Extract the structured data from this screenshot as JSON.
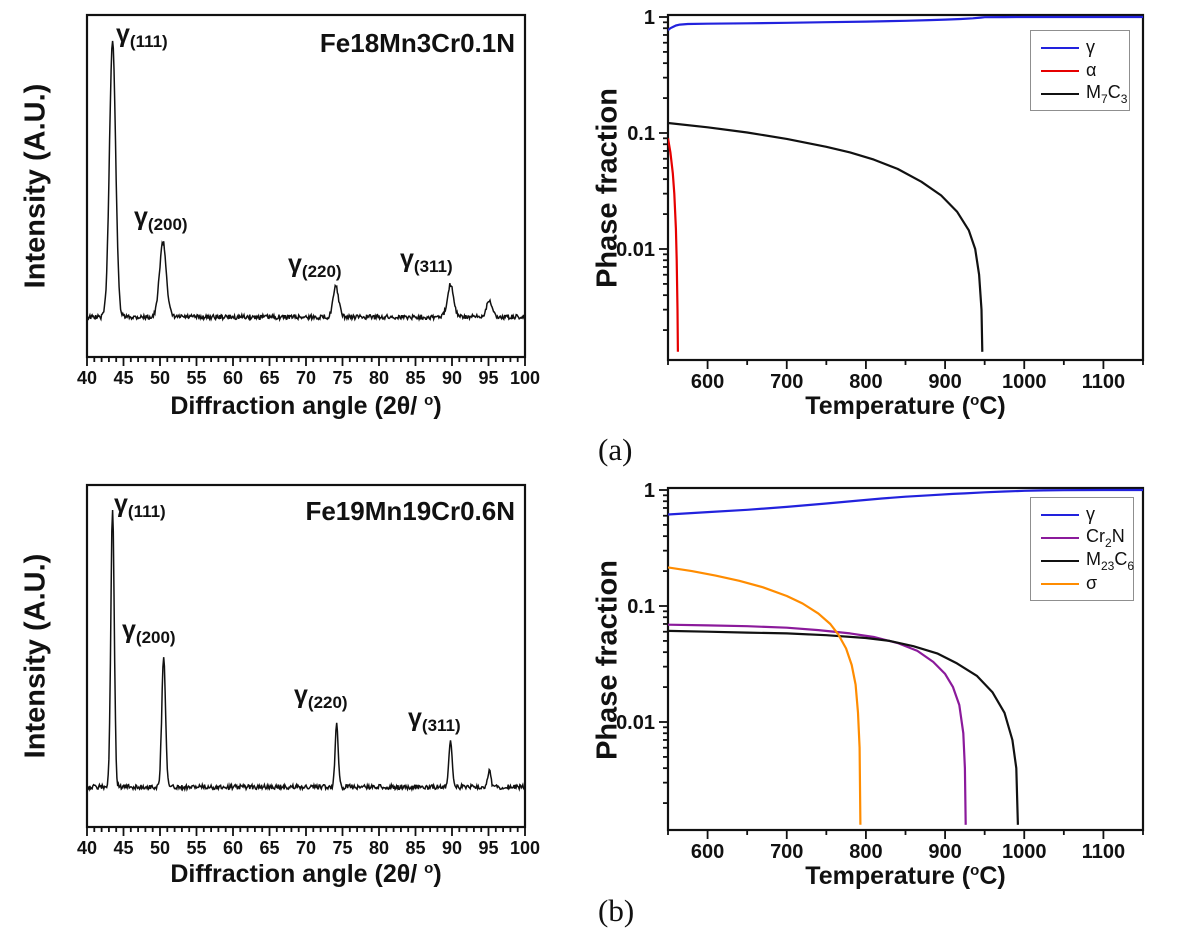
{
  "captions": {
    "a": "(a)",
    "b": "(b)"
  },
  "axis_labels": {
    "intensity": "Intensity (A.U.)",
    "phase": "Phase fraction",
    "diffraction": {
      "pre": "Diffraction angle (2θ/ ",
      "sup": "o",
      "post": ")"
    },
    "temperature": {
      "pre": "Temperature (",
      "sup": "o",
      "post": "C)"
    }
  },
  "chart_data": [
    {
      "id": "xrd_a",
      "type": "line",
      "title": "Fe18Mn3Cr0.1N",
      "xlabel": "Diffraction angle (2θ/ °)",
      "ylabel": "Intensity (A.U.)",
      "xlim": [
        40,
        100
      ],
      "x_major_ticks": [
        40,
        45,
        50,
        55,
        60,
        65,
        70,
        75,
        80,
        85,
        90,
        95,
        100
      ],
      "x_minor_step": 1,
      "yscale": "arbitrary",
      "noise": 0.008,
      "peaks": [
        {
          "two_theta": 43.5,
          "rel_height": 0.92,
          "fwhm": 1.0,
          "label": {
            "main": "γ",
            "sub": "(111)"
          }
        },
        {
          "two_theta": 50.4,
          "rel_height": 0.25,
          "fwhm": 1.1,
          "label": {
            "main": "γ",
            "sub": "(200)"
          }
        },
        {
          "two_theta": 74.1,
          "rel_height": 0.1,
          "fwhm": 0.9,
          "label": {
            "main": "γ",
            "sub": "(220)"
          }
        },
        {
          "two_theta": 89.8,
          "rel_height": 0.11,
          "fwhm": 1.0,
          "label": {
            "main": "γ",
            "sub": "(311)"
          }
        },
        {
          "two_theta": 95.1,
          "rel_height": 0.057,
          "fwhm": 0.9,
          "label": null
        }
      ]
    },
    {
      "id": "phase_a",
      "type": "line",
      "xlabel": "Temperature (°C)",
      "ylabel": "Phase fraction",
      "xlim": [
        550,
        1150
      ],
      "x_major_ticks": [
        600,
        700,
        800,
        900,
        1000,
        1100
      ],
      "x_minor_step": 50,
      "yscale": "log",
      "ylim": [
        0.0012,
        1.05
      ],
      "y_ticks": [
        {
          "v": 1,
          "label": "1"
        },
        {
          "v": 0.1,
          "label": "0.1"
        },
        {
          "v": 0.01,
          "label": "0.01"
        }
      ],
      "legend_position": "top-right",
      "series": [
        {
          "name": "gamma",
          "color": "#2222dd",
          "label_parts": [
            {
              "t": "γ"
            }
          ],
          "points": [
            [
              550,
              0.77
            ],
            [
              553,
              0.8
            ],
            [
              556,
              0.82
            ],
            [
              560,
              0.845
            ],
            [
              565,
              0.86
            ],
            [
              575,
              0.87
            ],
            [
              600,
              0.875
            ],
            [
              650,
              0.883
            ],
            [
              700,
              0.892
            ],
            [
              750,
              0.902
            ],
            [
              800,
              0.913
            ],
            [
              850,
              0.928
            ],
            [
              880,
              0.94
            ],
            [
              900,
              0.95
            ],
            [
              920,
              0.962
            ],
            [
              935,
              0.975
            ],
            [
              945,
              0.988
            ],
            [
              950,
              0.996
            ],
            [
              975,
              0.999
            ],
            [
              1000,
              1.0
            ],
            [
              1075,
              1.0
            ],
            [
              1150,
              1.0
            ]
          ]
        },
        {
          "name": "alpha",
          "color": "#e60000",
          "label_parts": [
            {
              "t": "α"
            }
          ],
          "points": [
            [
              550,
              0.09
            ],
            [
              553,
              0.068
            ],
            [
              556,
              0.045
            ],
            [
              558,
              0.03
            ],
            [
              560,
              0.015
            ],
            [
              561,
              0.008
            ],
            [
              562,
              0.003
            ],
            [
              562.5,
              0.0013
            ]
          ]
        },
        {
          "name": "M7C3",
          "color": "#111111",
          "label_parts": [
            {
              "t": "M"
            },
            {
              "s": "7"
            },
            {
              "t": "C"
            },
            {
              "s": "3"
            }
          ],
          "points": [
            [
              550,
              0.122
            ],
            [
              600,
              0.112
            ],
            [
              650,
              0.101
            ],
            [
              700,
              0.089
            ],
            [
              750,
              0.076
            ],
            [
              780,
              0.068
            ],
            [
              810,
              0.059
            ],
            [
              840,
              0.049
            ],
            [
              870,
              0.038
            ],
            [
              895,
              0.029
            ],
            [
              915,
              0.021
            ],
            [
              930,
              0.0145
            ],
            [
              938,
              0.01
            ],
            [
              943,
              0.006
            ],
            [
              946,
              0.003
            ],
            [
              947,
              0.0013
            ]
          ]
        }
      ]
    },
    {
      "id": "xrd_b",
      "type": "line",
      "title": "Fe19Mn19Cr0.6N",
      "xlabel": "Diffraction angle (2θ/ °)",
      "ylabel": "Intensity (A.U.)",
      "xlim": [
        40,
        100
      ],
      "x_major_ticks": [
        40,
        45,
        50,
        55,
        60,
        65,
        70,
        75,
        80,
        85,
        90,
        95,
        100
      ],
      "x_minor_step": 1,
      "yscale": "arbitrary",
      "noise": 0.008,
      "peaks": [
        {
          "two_theta": 43.5,
          "rel_height": 0.93,
          "fwhm": 0.55,
          "label": {
            "main": "γ",
            "sub": "(111)"
          }
        },
        {
          "two_theta": 50.5,
          "rel_height": 0.44,
          "fwhm": 0.6,
          "label": {
            "main": "γ",
            "sub": "(200)"
          }
        },
        {
          "two_theta": 74.2,
          "rel_height": 0.215,
          "fwhm": 0.5,
          "label": {
            "main": "γ",
            "sub": "(220)"
          }
        },
        {
          "two_theta": 89.8,
          "rel_height": 0.15,
          "fwhm": 0.55,
          "label": {
            "main": "γ",
            "sub": "(311)"
          }
        },
        {
          "two_theta": 95.1,
          "rel_height": 0.054,
          "fwhm": 0.5,
          "label": null
        }
      ]
    },
    {
      "id": "phase_b",
      "type": "line",
      "xlabel": "Temperature (°C)",
      "ylabel": "Phase fraction",
      "xlim": [
        550,
        1150
      ],
      "x_major_ticks": [
        600,
        700,
        800,
        900,
        1000,
        1100
      ],
      "x_minor_step": 50,
      "yscale": "log",
      "ylim": [
        0.0012,
        1.05
      ],
      "y_ticks": [
        {
          "v": 1,
          "label": "1"
        },
        {
          "v": 0.1,
          "label": "0.1"
        },
        {
          "v": 0.01,
          "label": "0.01"
        }
      ],
      "legend_position": "top-right",
      "series": [
        {
          "name": "gamma",
          "color": "#2222dd",
          "label_parts": [
            {
              "t": "γ"
            }
          ],
          "points": [
            [
              550,
              0.615
            ],
            [
              600,
              0.645
            ],
            [
              650,
              0.675
            ],
            [
              700,
              0.715
            ],
            [
              750,
              0.765
            ],
            [
              790,
              0.81
            ],
            [
              820,
              0.845
            ],
            [
              850,
              0.875
            ],
            [
              880,
              0.9
            ],
            [
              910,
              0.925
            ],
            [
              925,
              0.935
            ],
            [
              950,
              0.955
            ],
            [
              975,
              0.97
            ],
            [
              1000,
              0.985
            ],
            [
              1025,
              0.992
            ],
            [
              1050,
              0.997
            ],
            [
              1100,
              1.0
            ],
            [
              1150,
              1.0
            ]
          ]
        },
        {
          "name": "Cr2N",
          "color": "#8b1a9b",
          "label_parts": [
            {
              "t": "Cr"
            },
            {
              "s": "2"
            },
            {
              "t": "N"
            }
          ],
          "points": [
            [
              550,
              0.069
            ],
            [
              600,
              0.068
            ],
            [
              650,
              0.067
            ],
            [
              700,
              0.065
            ],
            [
              740,
              0.062
            ],
            [
              780,
              0.058
            ],
            [
              810,
              0.054
            ],
            [
              840,
              0.048
            ],
            [
              865,
              0.041
            ],
            [
              885,
              0.033
            ],
            [
              900,
              0.026
            ],
            [
              910,
              0.02
            ],
            [
              918,
              0.014
            ],
            [
              923,
              0.008
            ],
            [
              925,
              0.004
            ],
            [
              926,
              0.0013
            ]
          ]
        },
        {
          "name": "M23C6",
          "color": "#111111",
          "label_parts": [
            {
              "t": "M"
            },
            {
              "s": "23"
            },
            {
              "t": "C"
            },
            {
              "s": "6"
            }
          ],
          "points": [
            [
              550,
              0.061
            ],
            [
              600,
              0.06
            ],
            [
              650,
              0.059
            ],
            [
              700,
              0.058
            ],
            [
              750,
              0.056
            ],
            [
              800,
              0.053
            ],
            [
              830,
              0.05
            ],
            [
              860,
              0.045
            ],
            [
              890,
              0.039
            ],
            [
              915,
              0.032
            ],
            [
              940,
              0.025
            ],
            [
              960,
              0.018
            ],
            [
              975,
              0.012
            ],
            [
              985,
              0.007
            ],
            [
              990,
              0.004
            ],
            [
              992,
              0.0013
            ]
          ]
        },
        {
          "name": "sigma",
          "color": "#ff8c00",
          "label_parts": [
            {
              "t": "σ"
            }
          ],
          "points": [
            [
              550,
              0.215
            ],
            [
              580,
              0.2
            ],
            [
              610,
              0.183
            ],
            [
              640,
              0.165
            ],
            [
              670,
              0.145
            ],
            [
              700,
              0.122
            ],
            [
              720,
              0.105
            ],
            [
              740,
              0.086
            ],
            [
              755,
              0.07
            ],
            [
              765,
              0.057
            ],
            [
              775,
              0.043
            ],
            [
              782,
              0.031
            ],
            [
              787,
              0.021
            ],
            [
              790,
              0.012
            ],
            [
              792,
              0.006
            ],
            [
              793,
              0.0013
            ]
          ]
        }
      ]
    }
  ]
}
